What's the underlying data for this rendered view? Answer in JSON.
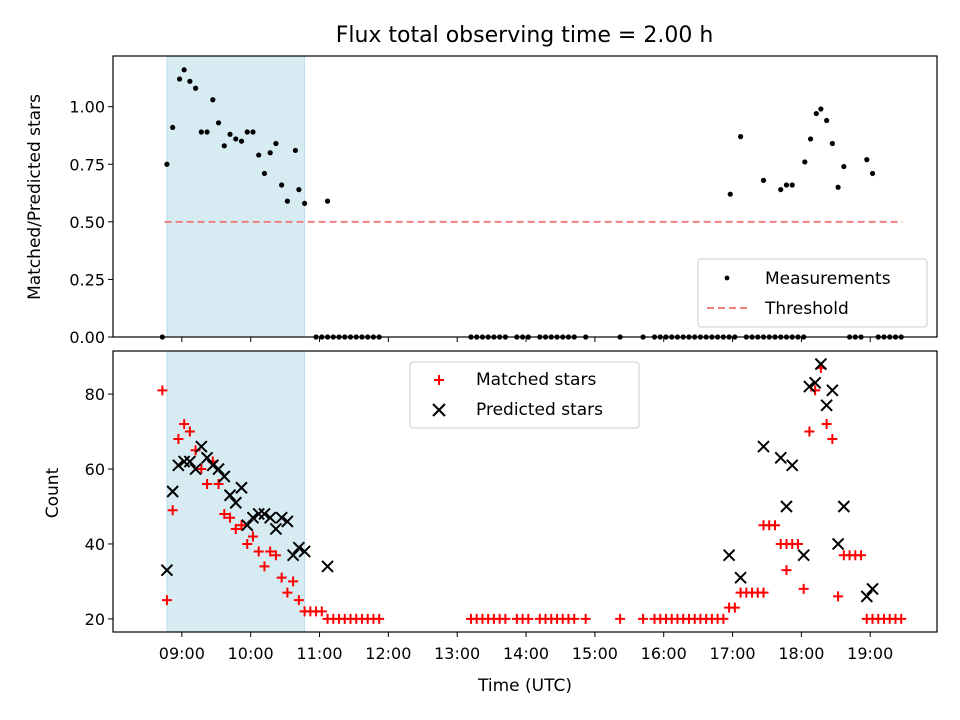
{
  "chart_data": [
    {
      "type": "scatter",
      "title": "Flux total observing time = 2.00 h",
      "ylabel": "Matched/Predicted stars",
      "xlabel": "",
      "ylim": [
        0,
        1.22
      ],
      "xlim_hours": [
        8.0,
        19.97
      ],
      "yticks": [
        0.0,
        0.25,
        0.5,
        0.75,
        1.0
      ],
      "ytick_labels": [
        "0.00",
        "0.25",
        "0.50",
        "0.75",
        "1.00"
      ],
      "shaded_interval": [
        "08:47",
        "10:47"
      ],
      "threshold": {
        "name": "Threshold",
        "value": 0.5,
        "from": "08:45",
        "to": "19:28",
        "color": "#f08080"
      },
      "legend": {
        "position": "lower right",
        "entries": [
          "Measurements",
          "Threshold"
        ]
      },
      "series": [
        {
          "name": "Measurements",
          "color": "#000000",
          "points": [
            [
              "08:43",
              0.0
            ],
            [
              "08:47",
              0.75
            ],
            [
              "08:52",
              0.91
            ],
            [
              "08:58",
              1.12
            ],
            [
              "09:02",
              1.16
            ],
            [
              "09:07",
              1.11
            ],
            [
              "09:12",
              1.08
            ],
            [
              "09:17",
              0.89
            ],
            [
              "09:22",
              0.89
            ],
            [
              "09:27",
              1.03
            ],
            [
              "09:32",
              0.93
            ],
            [
              "09:37",
              0.83
            ],
            [
              "09:42",
              0.88
            ],
            [
              "09:47",
              0.86
            ],
            [
              "09:52",
              0.85
            ],
            [
              "09:57",
              0.89
            ],
            [
              "10:02",
              0.89
            ],
            [
              "10:07",
              0.79
            ],
            [
              "10:12",
              0.71
            ],
            [
              "10:17",
              0.8
            ],
            [
              "10:22",
              0.84
            ],
            [
              "10:27",
              0.66
            ],
            [
              "10:32",
              0.59
            ],
            [
              "10:39",
              0.81
            ],
            [
              "10:42",
              0.64
            ],
            [
              "10:47",
              0.58
            ],
            [
              "10:57",
              0.0
            ],
            [
              "11:02",
              0.0
            ],
            [
              "11:07",
              0.0
            ],
            [
              "11:07",
              0.59
            ],
            [
              "11:12",
              0.0
            ],
            [
              "11:17",
              0.0
            ],
            [
              "11:22",
              0.0
            ],
            [
              "11:27",
              0.0
            ],
            [
              "11:32",
              0.0
            ],
            [
              "11:37",
              0.0
            ],
            [
              "11:42",
              0.0
            ],
            [
              "11:47",
              0.0
            ],
            [
              "11:52",
              0.0
            ],
            [
              "13:12",
              0.0
            ],
            [
              "13:17",
              0.0
            ],
            [
              "13:22",
              0.0
            ],
            [
              "13:27",
              0.0
            ],
            [
              "13:32",
              0.0
            ],
            [
              "13:37",
              0.0
            ],
            [
              "13:42",
              0.0
            ],
            [
              "13:52",
              0.0
            ],
            [
              "13:57",
              0.0
            ],
            [
              "14:02",
              0.0
            ],
            [
              "14:12",
              0.0
            ],
            [
              "14:17",
              0.0
            ],
            [
              "14:22",
              0.0
            ],
            [
              "14:27",
              0.0
            ],
            [
              "14:32",
              0.0
            ],
            [
              "14:37",
              0.0
            ],
            [
              "14:42",
              0.0
            ],
            [
              "14:52",
              0.0
            ],
            [
              "15:22",
              0.0
            ],
            [
              "15:42",
              0.0
            ],
            [
              "15:52",
              0.0
            ],
            [
              "15:57",
              0.0
            ],
            [
              "16:02",
              0.0
            ],
            [
              "16:07",
              0.0
            ],
            [
              "16:12",
              0.0
            ],
            [
              "16:17",
              0.0
            ],
            [
              "16:22",
              0.0
            ],
            [
              "16:27",
              0.0
            ],
            [
              "16:32",
              0.0
            ],
            [
              "16:37",
              0.0
            ],
            [
              "16:42",
              0.0
            ],
            [
              "16:47",
              0.0
            ],
            [
              "16:52",
              0.0
            ],
            [
              "16:57",
              0.0
            ],
            [
              "16:58",
              0.62
            ],
            [
              "17:02",
              0.0
            ],
            [
              "17:07",
              0.87
            ],
            [
              "17:12",
              0.0
            ],
            [
              "17:17",
              0.0
            ],
            [
              "17:22",
              0.0
            ],
            [
              "17:27",
              0.0
            ],
            [
              "17:27",
              0.68
            ],
            [
              "17:32",
              0.0
            ],
            [
              "17:37",
              0.0
            ],
            [
              "17:42",
              0.0
            ],
            [
              "17:42",
              0.64
            ],
            [
              "17:47",
              0.0
            ],
            [
              "17:47",
              0.66
            ],
            [
              "17:52",
              0.0
            ],
            [
              "17:52",
              0.66
            ],
            [
              "17:57",
              0.0
            ],
            [
              "18:02",
              0.0
            ],
            [
              "18:03",
              0.76
            ],
            [
              "18:08",
              0.86
            ],
            [
              "18:13",
              0.97
            ],
            [
              "18:17",
              0.99
            ],
            [
              "18:22",
              0.94
            ],
            [
              "18:27",
              0.84
            ],
            [
              "18:32",
              0.65
            ],
            [
              "18:37",
              0.74
            ],
            [
              "18:42",
              0.0
            ],
            [
              "18:47",
              0.0
            ],
            [
              "18:52",
              0.0
            ],
            [
              "18:57",
              0.77
            ],
            [
              "19:02",
              0.71
            ],
            [
              "19:07",
              0.0
            ],
            [
              "19:12",
              0.0
            ],
            [
              "19:17",
              0.0
            ],
            [
              "19:22",
              0.0
            ],
            [
              "19:27",
              0.0
            ]
          ]
        }
      ]
    },
    {
      "type": "scatter",
      "title": "",
      "ylabel": "Count",
      "xlabel": "Time (UTC)",
      "ylim": [
        16.5,
        91.5
      ],
      "xlim_hours": [
        8.0,
        19.97
      ],
      "yticks": [
        20,
        40,
        60,
        80
      ],
      "ytick_labels": [
        "20",
        "40",
        "60",
        "80"
      ],
      "xticks": [
        "09:00",
        "10:00",
        "11:00",
        "12:00",
        "13:00",
        "14:00",
        "15:00",
        "16:00",
        "17:00",
        "18:00",
        "19:00"
      ],
      "shaded_interval": [
        "08:47",
        "10:47"
      ],
      "legend": {
        "position": "upper center",
        "entries": [
          "Matched stars",
          "Predicted stars"
        ]
      },
      "series": [
        {
          "name": "Matched stars",
          "marker": "+",
          "color": "#ff0000",
          "points": [
            [
              "08:43",
              81
            ],
            [
              "08:47",
              25
            ],
            [
              "08:52",
              49
            ],
            [
              "08:57",
              68
            ],
            [
              "09:02",
              72
            ],
            [
              "09:07",
              70
            ],
            [
              "09:12",
              65
            ],
            [
              "09:17",
              60
            ],
            [
              "09:22",
              56
            ],
            [
              "09:27",
              62
            ],
            [
              "09:32",
              56
            ],
            [
              "09:37",
              48
            ],
            [
              "09:42",
              47
            ],
            [
              "09:47",
              44
            ],
            [
              "09:52",
              45
            ],
            [
              "09:57",
              40
            ],
            [
              "10:02",
              42
            ],
            [
              "10:07",
              38
            ],
            [
              "10:12",
              34
            ],
            [
              "10:17",
              38
            ],
            [
              "10:22",
              37
            ],
            [
              "10:27",
              31
            ],
            [
              "10:32",
              27
            ],
            [
              "10:37",
              30
            ],
            [
              "10:42",
              25
            ],
            [
              "10:47",
              22
            ],
            [
              "10:52",
              22
            ],
            [
              "10:57",
              22
            ],
            [
              "11:02",
              22
            ],
            [
              "11:07",
              20
            ],
            [
              "11:12",
              20
            ],
            [
              "11:17",
              20
            ],
            [
              "11:22",
              20
            ],
            [
              "11:27",
              20
            ],
            [
              "11:32",
              20
            ],
            [
              "11:37",
              20
            ],
            [
              "11:42",
              20
            ],
            [
              "11:47",
              20
            ],
            [
              "11:52",
              20
            ],
            [
              "13:12",
              20
            ],
            [
              "13:17",
              20
            ],
            [
              "13:22",
              20
            ],
            [
              "13:27",
              20
            ],
            [
              "13:32",
              20
            ],
            [
              "13:37",
              20
            ],
            [
              "13:42",
              20
            ],
            [
              "13:52",
              20
            ],
            [
              "13:57",
              20
            ],
            [
              "14:02",
              20
            ],
            [
              "14:12",
              20
            ],
            [
              "14:17",
              20
            ],
            [
              "14:22",
              20
            ],
            [
              "14:27",
              20
            ],
            [
              "14:32",
              20
            ],
            [
              "14:37",
              20
            ],
            [
              "14:42",
              20
            ],
            [
              "14:52",
              20
            ],
            [
              "15:22",
              20
            ],
            [
              "15:42",
              20
            ],
            [
              "15:52",
              20
            ],
            [
              "15:57",
              20
            ],
            [
              "16:02",
              20
            ],
            [
              "16:07",
              20
            ],
            [
              "16:12",
              20
            ],
            [
              "16:17",
              20
            ],
            [
              "16:22",
              20
            ],
            [
              "16:27",
              20
            ],
            [
              "16:32",
              20
            ],
            [
              "16:37",
              20
            ],
            [
              "16:42",
              20
            ],
            [
              "16:47",
              20
            ],
            [
              "16:52",
              20
            ],
            [
              "16:57",
              23
            ],
            [
              "17:02",
              23
            ],
            [
              "17:07",
              27
            ],
            [
              "17:12",
              27
            ],
            [
              "17:17",
              27
            ],
            [
              "17:22",
              27
            ],
            [
              "17:27",
              27
            ],
            [
              "17:27",
              45
            ],
            [
              "17:32",
              45
            ],
            [
              "17:37",
              45
            ],
            [
              "17:42",
              40
            ],
            [
              "17:47",
              33
            ],
            [
              "17:47",
              40
            ],
            [
              "17:52",
              40
            ],
            [
              "17:57",
              40
            ],
            [
              "18:02",
              28
            ],
            [
              "18:07",
              70
            ],
            [
              "18:12",
              81
            ],
            [
              "18:17",
              87
            ],
            [
              "18:22",
              72
            ],
            [
              "18:27",
              68
            ],
            [
              "18:32",
              26
            ],
            [
              "18:37",
              37
            ],
            [
              "18:42",
              37
            ],
            [
              "18:47",
              37
            ],
            [
              "18:52",
              37
            ],
            [
              "18:57",
              20
            ],
            [
              "19:02",
              20
            ],
            [
              "19:07",
              20
            ],
            [
              "19:12",
              20
            ],
            [
              "19:17",
              20
            ],
            [
              "19:22",
              20
            ],
            [
              "19:27",
              20
            ]
          ]
        },
        {
          "name": "Predicted stars",
          "marker": "x",
          "color": "#000000",
          "points": [
            [
              "08:47",
              33
            ],
            [
              "08:52",
              54
            ],
            [
              "08:57",
              61
            ],
            [
              "09:02",
              62
            ],
            [
              "09:07",
              62
            ],
            [
              "09:12",
              60
            ],
            [
              "09:17",
              66
            ],
            [
              "09:22",
              63
            ],
            [
              "09:27",
              61
            ],
            [
              "09:32",
              60
            ],
            [
              "09:37",
              58
            ],
            [
              "09:42",
              53
            ],
            [
              "09:47",
              51
            ],
            [
              "09:52",
              55
            ],
            [
              "09:57",
              45
            ],
            [
              "10:02",
              47
            ],
            [
              "10:07",
              48
            ],
            [
              "10:12",
              48
            ],
            [
              "10:17",
              47
            ],
            [
              "10:22",
              44
            ],
            [
              "10:27",
              47
            ],
            [
              "10:32",
              46
            ],
            [
              "10:37",
              37
            ],
            [
              "10:42",
              39
            ],
            [
              "10:47",
              38
            ],
            [
              "11:07",
              34
            ],
            [
              "16:57",
              37
            ],
            [
              "17:07",
              31
            ],
            [
              "17:27",
              66
            ],
            [
              "17:42",
              63
            ],
            [
              "17:47",
              50
            ],
            [
              "17:52",
              61
            ],
            [
              "18:02",
              37
            ],
            [
              "18:07",
              82
            ],
            [
              "18:12",
              83
            ],
            [
              "18:17",
              88
            ],
            [
              "18:22",
              77
            ],
            [
              "18:27",
              81
            ],
            [
              "18:32",
              40
            ],
            [
              "18:37",
              50
            ],
            [
              "18:57",
              26
            ],
            [
              "19:02",
              28
            ]
          ]
        }
      ]
    }
  ]
}
